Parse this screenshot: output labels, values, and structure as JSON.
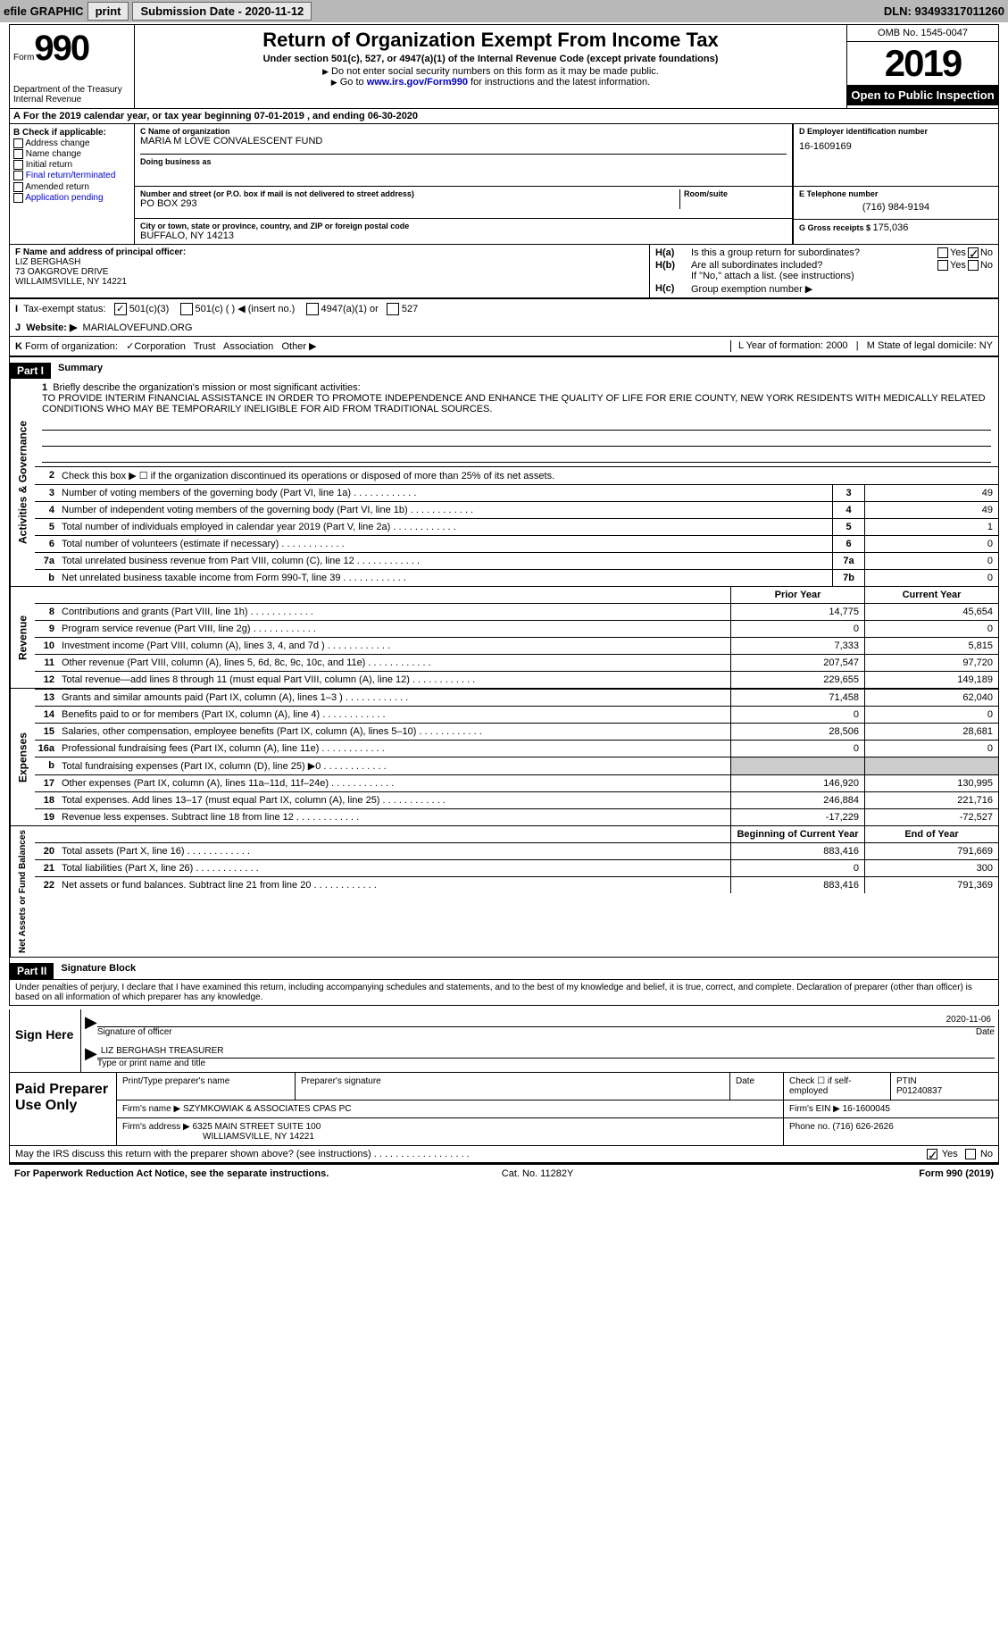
{
  "topbar": {
    "efile": "efile GRAPHIC",
    "print": "print",
    "submission_label": "Submission Date - ",
    "submission_date": "2020-11-12",
    "dln_label": "DLN: ",
    "dln": "93493317011260"
  },
  "header": {
    "form_label": "Form",
    "form_number": "990",
    "dept1": "Department of the Treasury",
    "dept2": "Internal Revenue",
    "title": "Return of Organization Exempt From Income Tax",
    "subtitle": "Under section 501(c), 527, or 4947(a)(1) of the Internal Revenue Code (except private foundations)",
    "note1": "Do not enter social security numbers on this form as it may be made public.",
    "note2_pre": "Go to ",
    "note2_link": "www.irs.gov/Form990",
    "note2_post": " for instructions and the latest information.",
    "omb": "OMB No. 1545-0047",
    "year": "2019",
    "open_public": "Open to Public Inspection"
  },
  "period": {
    "text": "For the 2019 calendar year, or tax year beginning 07-01-2019   , and ending 06-30-2020",
    "prefix": "A"
  },
  "section_b": {
    "label": "B Check if applicable:",
    "items": [
      "Address change",
      "Name change",
      "Initial return",
      "Final return/terminated",
      "Amended return",
      "Application pending"
    ]
  },
  "section_c": {
    "name_label": "C Name of organization",
    "name": "MARIA M LOVE CONVALESCENT FUND",
    "dba_label": "Doing business as",
    "street_label": "Number and street (or P.O. box if mail is not delivered to street address)",
    "room_label": "Room/suite",
    "street": "PO BOX 293",
    "city_label": "City or town, state or province, country, and ZIP or foreign postal code",
    "city": "BUFFALO, NY  14213"
  },
  "section_d": {
    "label": "D Employer identification number",
    "value": "16-1609169"
  },
  "section_e": {
    "label": "E Telephone number",
    "value": "(716) 984-9194"
  },
  "section_g": {
    "label": "G Gross receipts $ ",
    "value": "175,036"
  },
  "section_f": {
    "label": "F  Name and address of principal officer:",
    "line1": "LIZ BERGHASH",
    "line2": "73 OAKGROVE DRIVE",
    "line3": "WILLAIMSVILLE, NY  14221"
  },
  "section_h": {
    "ha_label": "H(a)",
    "ha_text": "Is this a group return for subordinates?",
    "hb_label": "H(b)",
    "hb_text": "Are all subordinates included?",
    "hb_note": "If \"No,\" attach a list. (see instructions)",
    "hc_label": "H(c)",
    "hc_text": "Group exemption number ▶",
    "yes": "Yes",
    "no": "No"
  },
  "section_i": {
    "label": "I",
    "text": "Tax-exempt status:",
    "opts": [
      "501(c)(3)",
      "501(c) (  ) ◀ (insert no.)",
      "4947(a)(1) or",
      "527"
    ]
  },
  "section_j": {
    "label": "J",
    "text": "Website: ▶",
    "value": "MARIALOVEFUND.ORG"
  },
  "section_k": {
    "label": "K",
    "text": "Form of organization:",
    "opts": [
      "Corporation",
      "Trust",
      "Association",
      "Other ▶"
    ],
    "year_label": "L Year of formation: ",
    "year": "2000",
    "state_label": "M State of legal domicile: ",
    "state": "NY"
  },
  "part1": {
    "header": "Part I",
    "title": "Summary",
    "side_gov": "Activities & Governance",
    "side_rev": "Revenue",
    "side_exp": "Expenses",
    "side_net": "Net Assets or Fund Balances",
    "q1_label": "1",
    "q1_text": "Briefly describe the organization's mission or most significant activities:",
    "q1_mission": "TO PROVIDE INTERIM FINANCIAL ASSISTANCE IN ORDER TO PROMOTE INDEPENDENCE AND ENHANCE THE QUALITY OF LIFE FOR ERIE COUNTY, NEW YORK RESIDENTS WITH MEDICALLY RELATED CONDITIONS WHO MAY BE TEMPORARILY INELIGIBLE FOR AID FROM TRADITIONAL SOURCES.",
    "q2_label": "2",
    "q2_text": "Check this box ▶ ☐  if the organization discontinued its operations or disposed of more than 25% of its net assets.",
    "rows_gov": [
      {
        "n": "3",
        "t": "Number of voting members of the governing body (Part VI, line 1a)",
        "c": "3",
        "v": "49"
      },
      {
        "n": "4",
        "t": "Number of independent voting members of the governing body (Part VI, line 1b)",
        "c": "4",
        "v": "49"
      },
      {
        "n": "5",
        "t": "Total number of individuals employed in calendar year 2019 (Part V, line 2a)",
        "c": "5",
        "v": "1"
      },
      {
        "n": "6",
        "t": "Total number of volunteers (estimate if necessary)",
        "c": "6",
        "v": "0"
      },
      {
        "n": "7a",
        "t": "Total unrelated business revenue from Part VIII, column (C), line 12",
        "c": "7a",
        "v": "0"
      },
      {
        "n": "b",
        "t": "Net unrelated business taxable income from Form 990-T, line 39",
        "c": "7b",
        "v": "0"
      }
    ],
    "hdr_prior": "Prior Year",
    "hdr_current": "Current Year",
    "rows_rev": [
      {
        "n": "8",
        "t": "Contributions and grants (Part VIII, line 1h)",
        "p": "14,775",
        "c": "45,654"
      },
      {
        "n": "9",
        "t": "Program service revenue (Part VIII, line 2g)",
        "p": "0",
        "c": "0"
      },
      {
        "n": "10",
        "t": "Investment income (Part VIII, column (A), lines 3, 4, and 7d )",
        "p": "7,333",
        "c": "5,815"
      },
      {
        "n": "11",
        "t": "Other revenue (Part VIII, column (A), lines 5, 6d, 8c, 9c, 10c, and 11e)",
        "p": "207,547",
        "c": "97,720"
      },
      {
        "n": "12",
        "t": "Total revenue—add lines 8 through 11 (must equal Part VIII, column (A), line 12)",
        "p": "229,655",
        "c": "149,189"
      }
    ],
    "rows_exp": [
      {
        "n": "13",
        "t": "Grants and similar amounts paid (Part IX, column (A), lines 1–3 )",
        "p": "71,458",
        "c": "62,040"
      },
      {
        "n": "14",
        "t": "Benefits paid to or for members (Part IX, column (A), line 4)",
        "p": "0",
        "c": "0"
      },
      {
        "n": "15",
        "t": "Salaries, other compensation, employee benefits (Part IX, column (A), lines 5–10)",
        "p": "28,506",
        "c": "28,681"
      },
      {
        "n": "16a",
        "t": "Professional fundraising fees (Part IX, column (A), line 11e)",
        "p": "0",
        "c": "0"
      },
      {
        "n": "b",
        "t": "Total fundraising expenses (Part IX, column (D), line 25) ▶0",
        "p": "",
        "c": "",
        "shaded": true
      },
      {
        "n": "17",
        "t": "Other expenses (Part IX, column (A), lines 11a–11d, 11f–24e)",
        "p": "146,920",
        "c": "130,995"
      },
      {
        "n": "18",
        "t": "Total expenses. Add lines 13–17 (must equal Part IX, column (A), line 25)",
        "p": "246,884",
        "c": "221,716"
      },
      {
        "n": "19",
        "t": "Revenue less expenses. Subtract line 18 from line 12",
        "p": "-17,229",
        "c": "-72,527"
      }
    ],
    "hdr_begin": "Beginning of Current Year",
    "hdr_end": "End of Year",
    "rows_net": [
      {
        "n": "20",
        "t": "Total assets (Part X, line 16)",
        "p": "883,416",
        "c": "791,669"
      },
      {
        "n": "21",
        "t": "Total liabilities (Part X, line 26)",
        "p": "0",
        "c": "300"
      },
      {
        "n": "22",
        "t": "Net assets or fund balances. Subtract line 21 from line 20",
        "p": "883,416",
        "c": "791,369"
      }
    ]
  },
  "part2": {
    "header": "Part II",
    "title": "Signature Block",
    "penalty": "Under penalties of perjury, I declare that I have examined this return, including accompanying schedules and statements, and to the best of my knowledge and belief, it is true, correct, and complete. Declaration of preparer (other than officer) is based on all information of which preparer has any knowledge.",
    "sign_here": "Sign Here",
    "sig_officer": "Signature of officer",
    "sig_date_label": "Date",
    "sig_date": "2020-11-06",
    "officer_name": "LIZ BERGHASH  TREASURER",
    "type_name": "Type or print name and title",
    "paid_prep": "Paid Preparer Use Only",
    "prep_name_label": "Print/Type preparer's name",
    "prep_sig_label": "Preparer's signature",
    "date_label": "Date",
    "check_label": "Check ☐ if self-employed",
    "ptin_label": "PTIN",
    "ptin": "P01240837",
    "firm_name_label": "Firm's name   ▶ ",
    "firm_name": "SZYMKOWIAK & ASSOCIATES CPAS PC",
    "firm_ein_label": "Firm's EIN ▶ ",
    "firm_ein": "16-1600045",
    "firm_addr_label": "Firm's address ▶ ",
    "firm_addr1": "6325 MAIN STREET SUITE 100",
    "firm_addr2": "WILLIAMSVILLE, NY  14221",
    "phone_label": "Phone no. ",
    "phone": "(716) 626-2626",
    "discuss": "May the IRS discuss this return with the preparer shown above? (see instructions)",
    "paperwork": "For Paperwork Reduction Act Notice, see the separate instructions.",
    "cat": "Cat. No. 11282Y",
    "form_footer": "Form 990 (2019)"
  }
}
